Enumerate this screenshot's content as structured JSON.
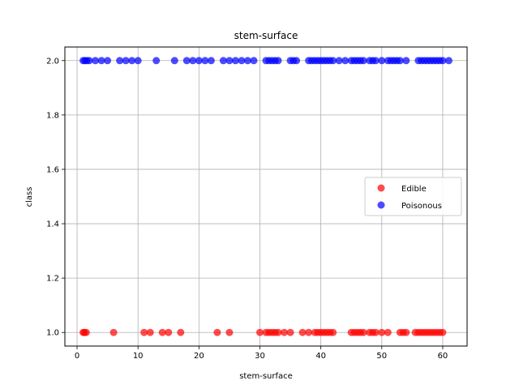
{
  "chart_data": {
    "type": "scatter",
    "title": "stem-surface",
    "xlabel": "stem-surface",
    "ylabel": "class",
    "xlim": [
      -2,
      64
    ],
    "ylim": [
      0.95,
      2.05
    ],
    "xticks": [
      0,
      10,
      20,
      30,
      40,
      50,
      60
    ],
    "yticks": [
      1.0,
      1.2,
      1.4,
      1.6,
      1.8,
      2.0
    ],
    "ytick_labels": [
      "1.0",
      "1.2",
      "1.4",
      "1.6",
      "1.8",
      "2.0"
    ],
    "grid": true,
    "legend_position": "center-right",
    "series": [
      {
        "name": "Edible",
        "color": "#ff0000",
        "y": 1.0,
        "x": [
          1,
          1.2,
          1.5,
          6,
          11,
          12,
          14,
          15,
          17,
          23,
          25,
          30,
          31,
          31.5,
          32,
          32.5,
          33,
          34,
          35,
          37,
          38,
          39,
          39.5,
          40,
          40.5,
          41,
          41.5,
          42,
          45,
          45.5,
          46,
          46.5,
          47,
          48,
          48.5,
          49,
          50,
          51,
          53,
          53.5,
          54,
          55.5,
          56,
          56.5,
          57,
          57.5,
          58,
          58.5,
          59,
          59.5,
          60
        ]
      },
      {
        "name": "Poisonous",
        "color": "#0000ff",
        "y": 2.0,
        "x": [
          1,
          1.3,
          1.6,
          2,
          3,
          4,
          5,
          7,
          8,
          9,
          10,
          13,
          16,
          18,
          19,
          20,
          21,
          22,
          24,
          25,
          26,
          27,
          28,
          29,
          31,
          31.5,
          32,
          32.5,
          33,
          35,
          35.5,
          36,
          38,
          38.5,
          39,
          39.5,
          40,
          40.5,
          41,
          41.5,
          42,
          43,
          44,
          45,
          45.5,
          46,
          46.5,
          47,
          48,
          48.5,
          49,
          50,
          51,
          51.5,
          52,
          52.5,
          53,
          54,
          56,
          56.5,
          57,
          57.5,
          58,
          58.5,
          59,
          59.5,
          60,
          61
        ]
      }
    ]
  }
}
